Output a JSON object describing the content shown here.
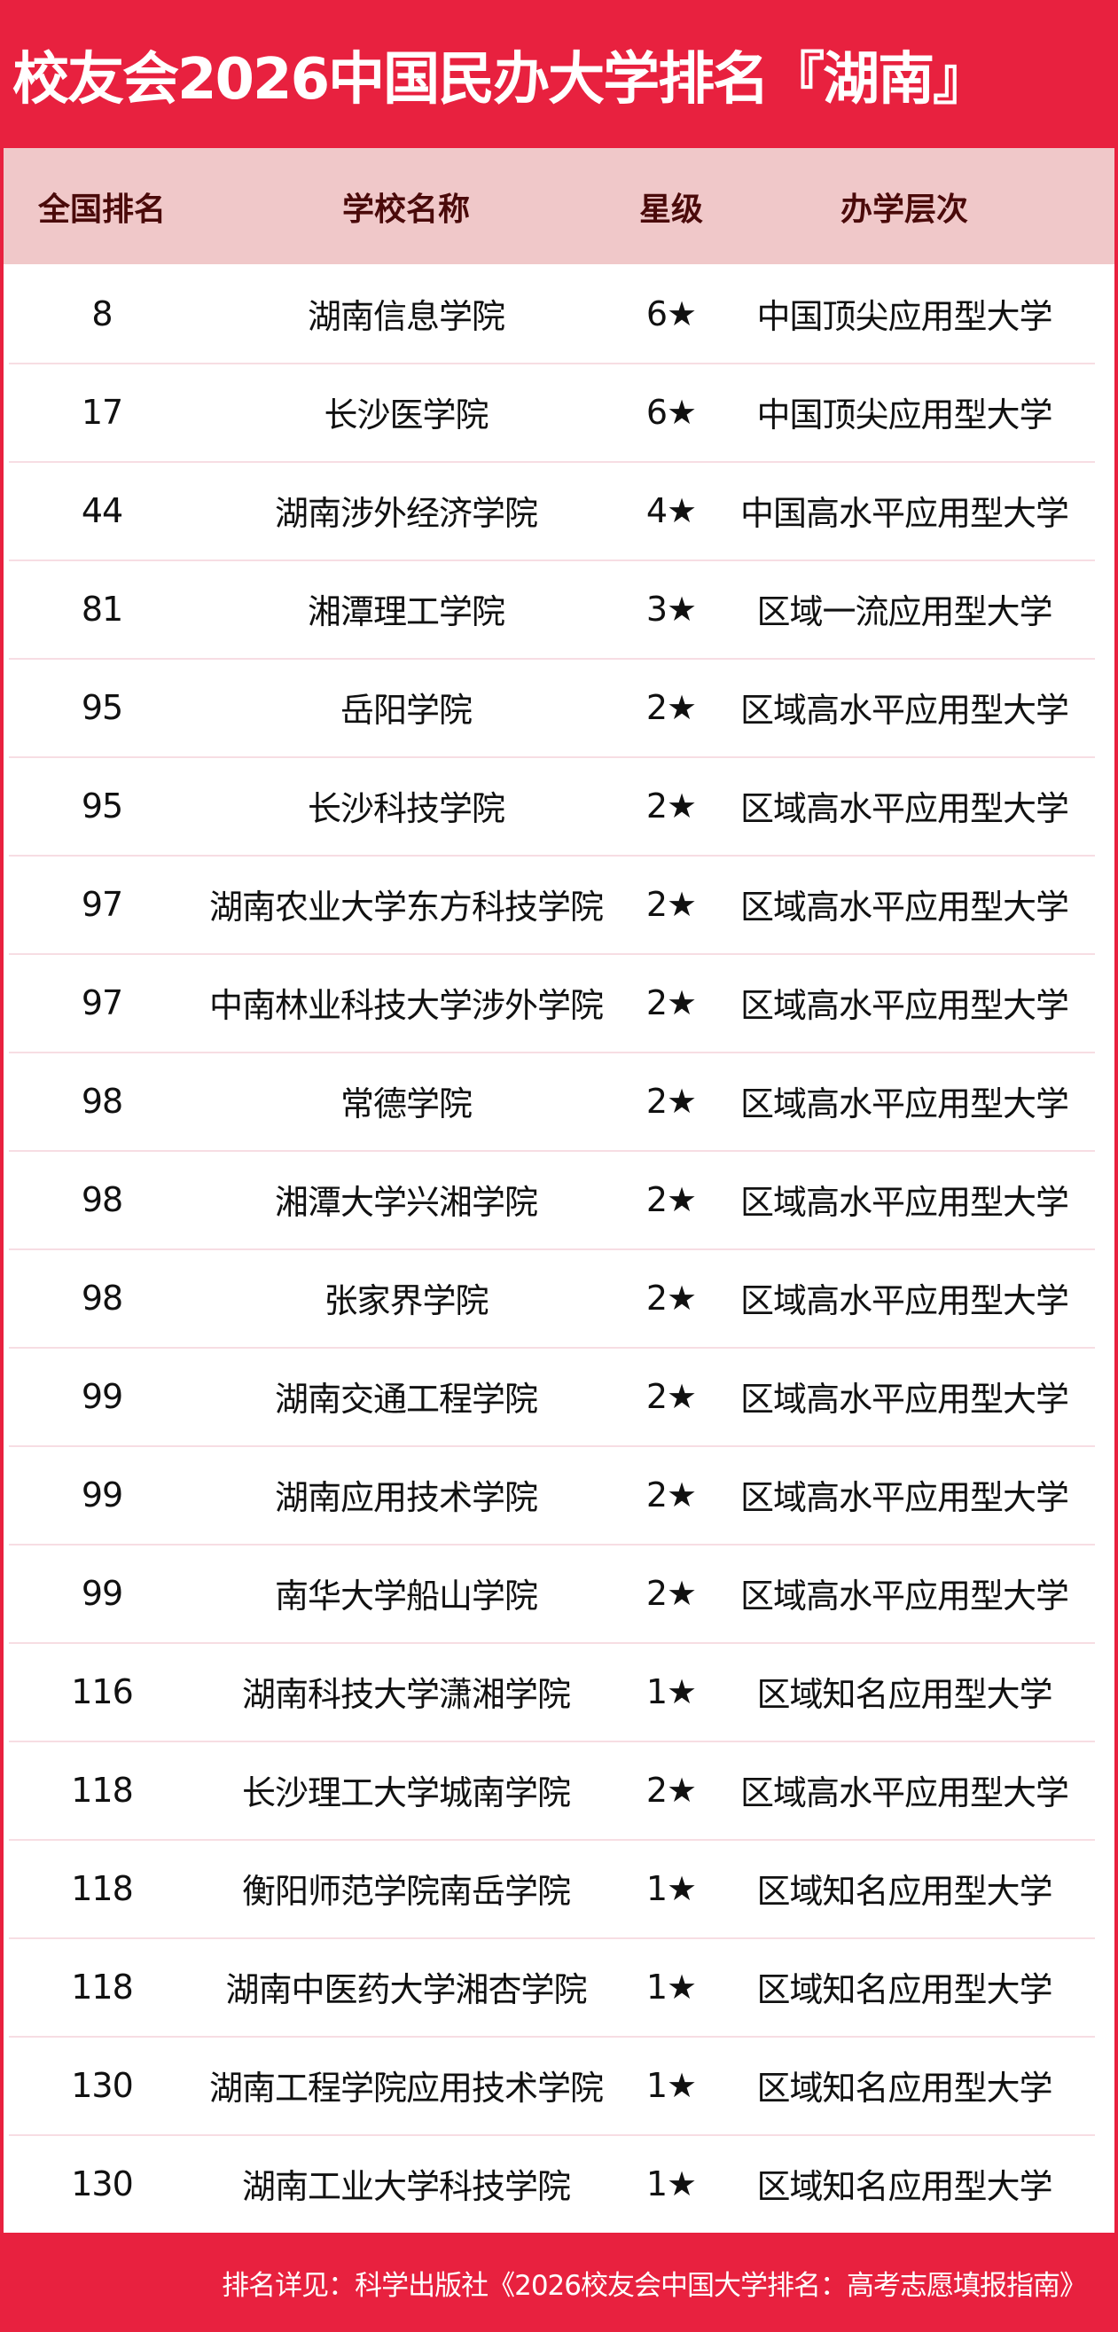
{
  "title": "校友会2026中国民办大学排名『湖南』",
  "colors": {
    "brand_red": "#e8213f",
    "header_bg": "#f0c8c9",
    "header_text": "#4a0a0a"
  },
  "table": {
    "headers": [
      "全国排名",
      "学校名称",
      "星级",
      "办学层次"
    ],
    "rows": [
      [
        "8",
        "湖南信息学院",
        "6★",
        "中国顶尖应用型大学"
      ],
      [
        "17",
        "长沙医学院",
        "6★",
        "中国顶尖应用型大学"
      ],
      [
        "44",
        "湖南涉外经济学院",
        "4★",
        "中国高水平应用型大学"
      ],
      [
        "81",
        "湘潭理工学院",
        "3★",
        "区域一流应用型大学"
      ],
      [
        "95",
        "岳阳学院",
        "2★",
        "区域高水平应用型大学"
      ],
      [
        "95",
        "长沙科技学院",
        "2★",
        "区域高水平应用型大学"
      ],
      [
        "97",
        "湖南农业大学东方科技学院",
        "2★",
        "区域高水平应用型大学"
      ],
      [
        "97",
        "中南林业科技大学涉外学院",
        "2★",
        "区域高水平应用型大学"
      ],
      [
        "98",
        "常德学院",
        "2★",
        "区域高水平应用型大学"
      ],
      [
        "98",
        "湘潭大学兴湘学院",
        "2★",
        "区域高水平应用型大学"
      ],
      [
        "98",
        "张家界学院",
        "2★",
        "区域高水平应用型大学"
      ],
      [
        "99",
        "湖南交通工程学院",
        "2★",
        "区域高水平应用型大学"
      ],
      [
        "99",
        "湖南应用技术学院",
        "2★",
        "区域高水平应用型大学"
      ],
      [
        "99",
        "南华大学船山学院",
        "2★",
        "区域高水平应用型大学"
      ],
      [
        "116",
        "湖南科技大学潇湘学院",
        "1★",
        "区域知名应用型大学"
      ],
      [
        "118",
        "长沙理工大学城南学院",
        "2★",
        "区域高水平应用型大学"
      ],
      [
        "118",
        "衡阳师范学院南岳学院",
        "1★",
        "区域知名应用型大学"
      ],
      [
        "118",
        "湖南中医药大学湘杏学院",
        "1★",
        "区域知名应用型大学"
      ],
      [
        "130",
        "湖南工程学院应用技术学院",
        "1★",
        "区域知名应用型大学"
      ],
      [
        "130",
        "湖南工业大学科技学院",
        "1★",
        "区域知名应用型大学"
      ]
    ]
  },
  "footer": "排名详见：科学出版社《2026校友会中国大学排名：高考志愿填报指南》"
}
